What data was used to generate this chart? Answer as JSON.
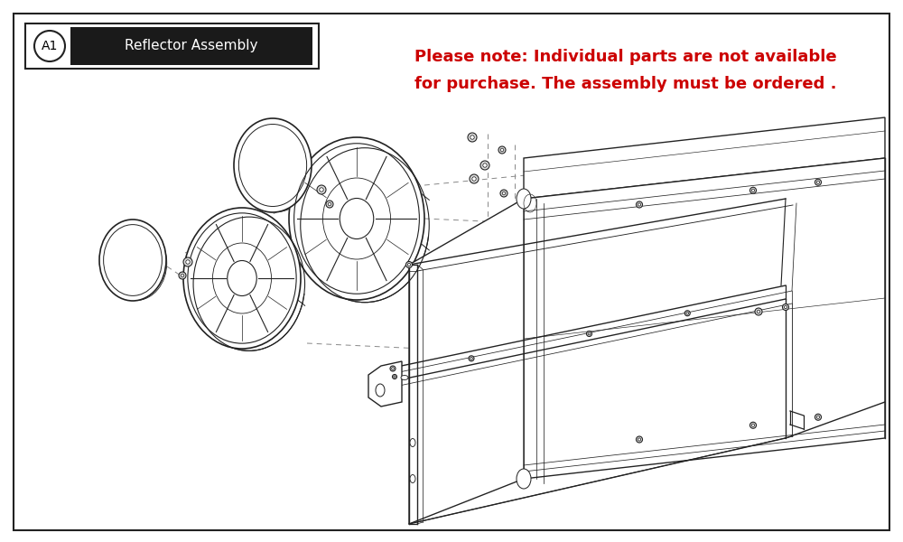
{
  "title": "Reflector Assembly",
  "part_id": "A1",
  "note_line1": "Please note: Individual parts are not available",
  "note_line2": "for purchase. The assembly must be ordered .",
  "note_color": "#cc0000",
  "bg_color": "#ffffff",
  "border_color": "#222222",
  "fig_width": 10.0,
  "fig_height": 6.0,
  "lc": "#222222",
  "lw": 1.0
}
